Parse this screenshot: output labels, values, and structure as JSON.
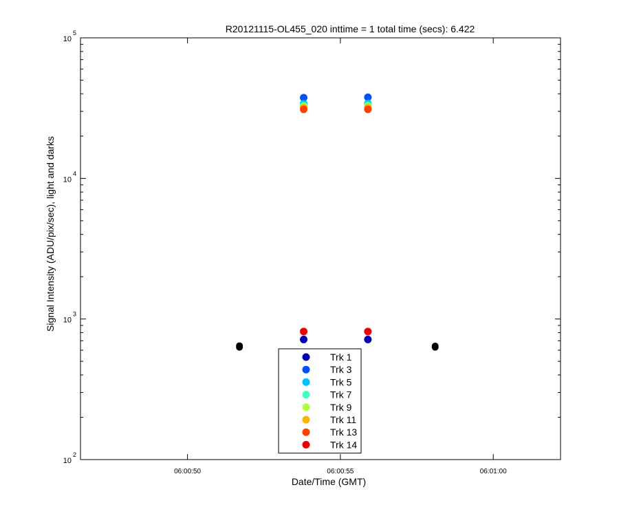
{
  "chart_data": {
    "type": "scatter",
    "title": "R20121115-OL455_020 inttime = 1 total time (secs): 6.422",
    "xlabel": "Date/Time (GMT)",
    "ylabel": "Signal Intensity (ADU/pix/sec), light and darks",
    "y_scale": "log",
    "ylim": [
      100,
      100000
    ],
    "xlim": [
      "06:00:46.5",
      "06:01:02.2"
    ],
    "x_ticks": [
      "06:00:50",
      "06:00:55",
      "06:01:00"
    ],
    "y_ticks": [
      {
        "value": 100,
        "base": "10",
        "exp": "2"
      },
      {
        "value": 1000,
        "base": "10",
        "exp": "3"
      },
      {
        "value": 10000,
        "base": "10",
        "exp": "4"
      },
      {
        "value": 100000,
        "base": "10",
        "exp": "5"
      }
    ],
    "grid": false,
    "legend_position": "bottom-center",
    "series": [
      {
        "name": "Trk 1",
        "color": "#0000b0",
        "points": [
          {
            "x": "06:00:53.8",
            "y": 715
          },
          {
            "x": "06:00:55.9",
            "y": 715
          }
        ]
      },
      {
        "name": "Trk 3",
        "color": "#0050ff",
        "points": [
          {
            "x": "06:00:53.8",
            "y": 37500
          },
          {
            "x": "06:00:55.9",
            "y": 37800
          }
        ]
      },
      {
        "name": "Trk 5",
        "color": "#00c0ff",
        "points": [
          {
            "x": "06:00:53.8",
            "y": 34000
          },
          {
            "x": "06:00:55.9",
            "y": 34200
          }
        ]
      },
      {
        "name": "Trk 7",
        "color": "#40ffc0",
        "points": [
          {
            "x": "06:00:53.8",
            "y": 33000
          },
          {
            "x": "06:00:55.9",
            "y": 33200
          }
        ]
      },
      {
        "name": "Trk 9",
        "color": "#b0ff40",
        "points": [
          {
            "x": "06:00:53.8",
            "y": 32500
          },
          {
            "x": "06:00:55.9",
            "y": 32600
          }
        ]
      },
      {
        "name": "Trk 11",
        "color": "#ffb000",
        "points": [
          {
            "x": "06:00:53.8",
            "y": 31800
          },
          {
            "x": "06:00:55.9",
            "y": 31900
          }
        ]
      },
      {
        "name": "Trk 13",
        "color": "#ff4000",
        "points": [
          {
            "x": "06:00:53.8",
            "y": 31000
          },
          {
            "x": "06:00:55.9",
            "y": 31000
          }
        ]
      },
      {
        "name": "Trk 14",
        "color": "#ee0000",
        "points": [
          {
            "x": "06:00:53.8",
            "y": 815
          },
          {
            "x": "06:00:55.9",
            "y": 815
          }
        ]
      }
    ],
    "darks": {
      "color": "#000000",
      "points": [
        {
          "x": "06:00:51.7",
          "y": 630
        },
        {
          "x": "06:00:51.7",
          "y": 645
        },
        {
          "x": "06:00:58.1",
          "y": 630
        },
        {
          "x": "06:00:58.1",
          "y": 642
        }
      ]
    }
  }
}
